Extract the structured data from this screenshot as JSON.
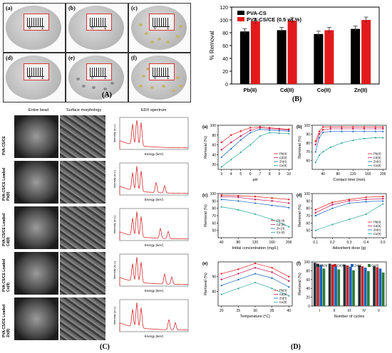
{
  "panel_a": {
    "label": "(A)",
    "dishes": [
      {
        "tag": "(a)",
        "ruler": [
          "0",
          "1"
        ]
      },
      {
        "tag": "(b)",
        "ruler": [
          "0",
          "1"
        ]
      },
      {
        "tag": "(c)",
        "ruler": [
          "0",
          "1"
        ]
      },
      {
        "tag": "(d)",
        "ruler": [
          "0",
          "1"
        ]
      },
      {
        "tag": "(e)",
        "ruler": [
          "0",
          "1"
        ]
      },
      {
        "tag": "(f)",
        "ruler": [
          "0",
          "1"
        ]
      }
    ]
  },
  "panel_b": {
    "label": "(B)"
  },
  "panel_c": {
    "label": "(C)",
    "col_entire": "Entire bead",
    "col_surface": "Surface morphology",
    "col_edx": "EDX spectrum",
    "rows": [
      "PVA-CS/CE",
      "PVA-CS/CE Loaded Pb(II)",
      "PVA-CS/CE Loaded Cd(II)",
      "PVA-CS/CE Loaded Co(II)",
      "PVA-CS/CE Loaded Zn(II)"
    ],
    "edx_xlabel": "Energy (keV)",
    "edx_ylabel": "Intensity (a.u.)"
  },
  "panel_d": {
    "label": "(D)"
  },
  "chart_data": [
    {
      "id": "B",
      "type": "bar",
      "categories": [
        "Pb(II)",
        "Cd(II)",
        "Co(II)",
        "Zn(II)"
      ],
      "series": [
        {
          "name": "PVA-CS",
          "values": [
            82,
            84,
            78,
            86
          ],
          "color": "#000000"
        },
        {
          "name": "PVA-CS/CE (0.5 wt.%)",
          "values": [
            98,
            99,
            84,
            100
          ],
          "color": "#e31a1c"
        }
      ],
      "ylabel": "% Removal",
      "ylim": [
        0,
        120
      ],
      "yticks": [
        0,
        20,
        40,
        60,
        80,
        100,
        120
      ],
      "legend": "top-left"
    },
    {
      "id": "a",
      "tag": "(a)",
      "type": "line",
      "x": [
        3,
        4,
        5,
        6,
        7,
        8,
        9,
        10
      ],
      "xticks": [
        3,
        4,
        5,
        6,
        7,
        8,
        9,
        10
      ],
      "xlabel": "pH",
      "ylabel": "Removal (%)",
      "ylim": [
        10,
        100
      ],
      "yticks": [
        20,
        40,
        60,
        80,
        100
      ],
      "series": [
        {
          "name": "Pb(II)",
          "values": [
            65,
            80,
            88,
            95,
            97,
            95,
            93,
            92
          ]
        },
        {
          "name": "Cd(II)",
          "values": [
            50,
            65,
            78,
            90,
            95,
            93,
            92,
            90
          ]
        },
        {
          "name": "Zn(II)",
          "values": [
            35,
            52,
            70,
            85,
            92,
            90,
            89,
            88
          ]
        },
        {
          "name": "Co(II)",
          "values": [
            15,
            30,
            45,
            60,
            78,
            85,
            84,
            83
          ]
        }
      ]
    },
    {
      "id": "b",
      "tag": "(b)",
      "type": "line",
      "x": [
        20,
        30,
        40,
        60,
        90,
        120,
        150,
        180,
        200
      ],
      "xticks": [
        40,
        80,
        120,
        160,
        200
      ],
      "xlabel": "Contact time (min)",
      "ylabel": "Removal (%)",
      "ylim": [
        50,
        100
      ],
      "yticks": [
        60,
        70,
        80,
        90,
        100
      ],
      "series": [
        {
          "name": "Pb(II)",
          "values": [
            82,
            93,
            98,
            98,
            98,
            98,
            98,
            98,
            98
          ]
        },
        {
          "name": "Cd(II)",
          "values": [
            78,
            90,
            95,
            96,
            96,
            96,
            96,
            96,
            96
          ]
        },
        {
          "name": "Zn(II)",
          "values": [
            70,
            86,
            92,
            93,
            93,
            93,
            93,
            93,
            93
          ]
        },
        {
          "name": "Co(II)",
          "values": [
            58,
            66,
            70,
            75,
            80,
            83,
            85,
            86,
            86
          ]
        }
      ]
    },
    {
      "id": "c",
      "tag": "(c)",
      "type": "line",
      "x": [
        40,
        80,
        120,
        160,
        200
      ],
      "xticks": [
        40,
        80,
        120,
        160,
        200
      ],
      "xlabel": "Initial concentration (mg/L)",
      "ylabel": "Removal (%)",
      "ylim": [
        40,
        100
      ],
      "yticks": [
        50,
        60,
        70,
        80,
        90,
        100
      ],
      "legend": "bottom-right",
      "series": [
        {
          "name": "Pb (II)",
          "values": [
            98,
            97,
            96,
            94,
            92
          ]
        },
        {
          "name": "Cd (II)",
          "values": [
            96,
            95,
            92,
            90,
            87
          ]
        },
        {
          "name": "Zn (II)",
          "values": [
            92,
            90,
            87,
            84,
            81
          ]
        },
        {
          "name": "Co (II)",
          "values": [
            82,
            78,
            72,
            65,
            55
          ]
        }
      ]
    },
    {
      "id": "d",
      "tag": "(d)",
      "type": "line",
      "x": [
        0.1,
        0.2,
        0.3,
        0.4,
        0.5
      ],
      "xticks": [
        0.1,
        0.2,
        0.3,
        0.4,
        0.5
      ],
      "xlabel": "Adsorbent dose (g)",
      "ylabel": "Removal (%)",
      "ylim": [
        40,
        100
      ],
      "yticks": [
        50,
        60,
        70,
        80,
        90,
        100
      ],
      "series": [
        {
          "name": "Pb(II)",
          "values": [
            78,
            88,
            92,
            95,
            96
          ]
        },
        {
          "name": "Cd(II)",
          "values": [
            74,
            85,
            90,
            92,
            93
          ]
        },
        {
          "name": "Zn(II)",
          "values": [
            70,
            80,
            87,
            89,
            90
          ]
        },
        {
          "name": "Co(II)",
          "values": [
            50,
            58,
            65,
            72,
            86
          ]
        }
      ]
    },
    {
      "id": "e",
      "tag": "(e)",
      "type": "line",
      "x": [
        20,
        25,
        30,
        35,
        40
      ],
      "xticks": [
        20,
        25,
        30,
        35,
        40
      ],
      "xlabel": "Temperature (°C)",
      "ylabel": "Removal (%)",
      "ylim": [
        70,
        100
      ],
      "yticks": [
        80,
        90
      ],
      "series": [
        {
          "name": "Pb(II)",
          "values": [
            92,
            95,
            99,
            96,
            90
          ]
        },
        {
          "name": "Cd(II)",
          "values": [
            88,
            92,
            96,
            93,
            87
          ]
        },
        {
          "name": "Zn(II)",
          "values": [
            84,
            88,
            92,
            89,
            83
          ]
        },
        {
          "name": "Co(II)",
          "values": [
            78,
            82,
            86,
            82,
            77
          ]
        }
      ]
    },
    {
      "id": "f",
      "tag": "(f)",
      "type": "bar",
      "categories": [
        "I",
        "II",
        "III",
        "IV",
        "V"
      ],
      "xlabel": "Number of cycles",
      "ylabel": "Removal (%)",
      "ylim": [
        0,
        100
      ],
      "yticks": [
        0,
        20,
        40,
        60,
        80,
        100
      ],
      "legend": "top",
      "series": [
        {
          "name": "Pb(II)",
          "values": [
            98,
            96,
            94,
            92,
            90
          ]
        },
        {
          "name": "Cd(II)",
          "values": [
            96,
            94,
            92,
            90,
            88
          ]
        },
        {
          "name": "Zn(II)",
          "values": [
            93,
            91,
            89,
            87,
            85
          ]
        },
        {
          "name": "Co(II)",
          "values": [
            85,
            83,
            81,
            79,
            76
          ]
        }
      ]
    }
  ],
  "colors": {
    "pb": "#e31a1c",
    "cd": "#c2185b",
    "zn": "#1565c0",
    "co": "#26a69a",
    "bars_f": [
      "#263238",
      "#c62828",
      "#1565c0",
      "#2e7d32"
    ],
    "edx_line": "#d32f2f"
  }
}
